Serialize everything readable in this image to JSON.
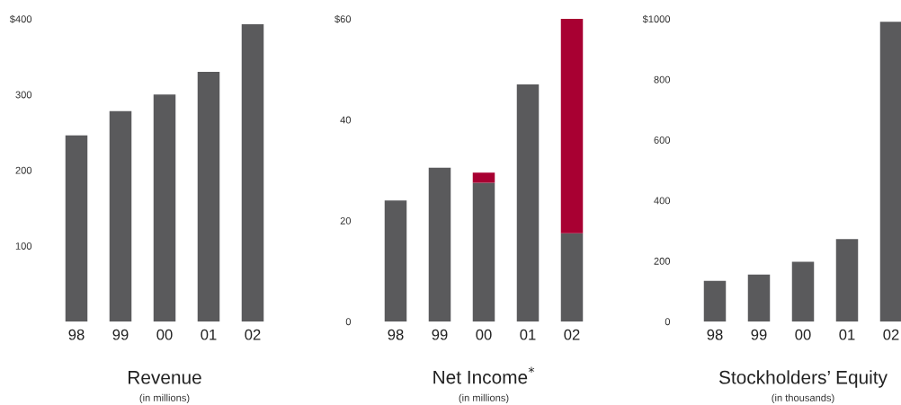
{
  "chart_data": [
    {
      "type": "bar",
      "title": "Revenue",
      "subtitle": "(in millions)",
      "categories": [
        "98",
        "99",
        "00",
        "01",
        "02"
      ],
      "values": [
        246,
        278,
        300,
        330,
        393
      ],
      "color": "#5a5a5c",
      "ylim": [
        0,
        400
      ],
      "yticks": [
        {
          "value": 100,
          "label": "100"
        },
        {
          "value": 200,
          "label": "200"
        },
        {
          "value": 300,
          "label": "300"
        },
        {
          "value": 400,
          "label": "$400"
        }
      ],
      "grid": false,
      "legend": false
    },
    {
      "type": "bar",
      "title": "Net Income$^{*}$",
      "subtitle": "(in millions)",
      "categories": [
        "98",
        "99",
        "00",
        "01",
        "02"
      ],
      "stacked": true,
      "series": [
        {
          "color": "#5a5a5c",
          "values": [
            24,
            30.5,
            27.5,
            47,
            17.5
          ]
        },
        {
          "color": "#a80032",
          "values": [
            null,
            null,
            2,
            null,
            42.5
          ]
        }
      ],
      "ylim": [
        0,
        60
      ],
      "yticks": [
        0,
        20,
        40,
        {
          "value": 60,
          "label": "$60"
        }
      ],
      "grid": false,
      "legend": false
    },
    {
      "type": "bar",
      "title": "Stockholders’ Equity",
      "subtitle": "(in thousands)",
      "categories": [
        "98",
        "99",
        "00",
        "01",
        "02"
      ],
      "values": [
        134,
        155,
        197,
        272,
        990
      ],
      "color": "#5a5a5c",
      "ylim": [
        0,
        1000
      ],
      "yticks": [
        0,
        200,
        400,
        600,
        800,
        {
          "value": 1000,
          "label": "$1000"
        }
      ],
      "grid": false,
      "legend": false
    }
  ]
}
